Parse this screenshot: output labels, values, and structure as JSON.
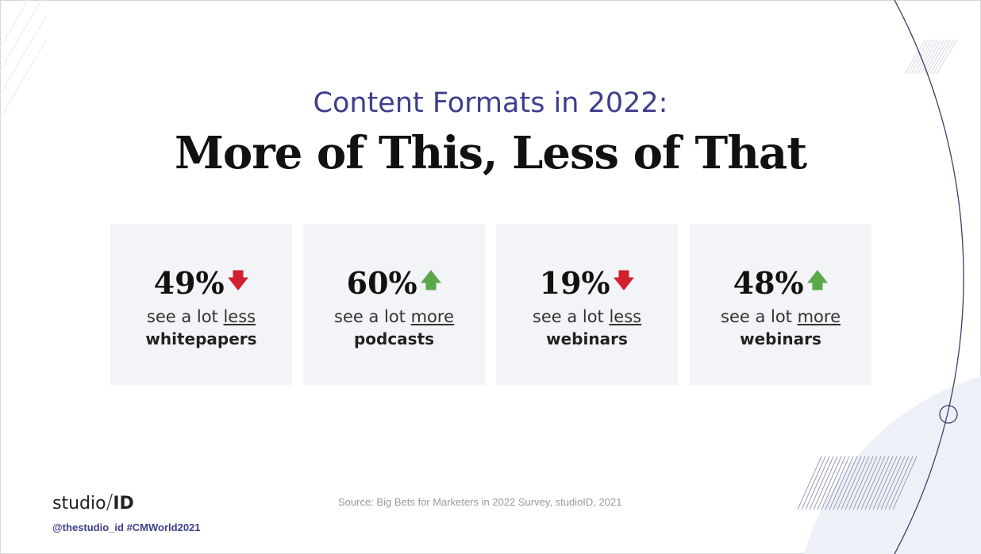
{
  "slide": {
    "subtitle": "Content Formats in 2022:",
    "title": "More of This, Less of That",
    "cards": [
      {
        "percent": "49%",
        "direction": "down",
        "arrow": "🡇",
        "prefix": "see a lot ",
        "qualifier": "less",
        "format": "whitepapers"
      },
      {
        "percent": "60%",
        "direction": "up",
        "arrow": "🡅",
        "prefix": "see a lot ",
        "qualifier": "more",
        "format": "podcasts"
      },
      {
        "percent": "19%",
        "direction": "down",
        "arrow": "🡇",
        "prefix": "see a lot ",
        "qualifier": "less",
        "format": "webinars"
      },
      {
        "percent": "48%",
        "direction": "up",
        "arrow": "🡅",
        "prefix": "see a lot ",
        "qualifier": "more",
        "format": "webinars"
      }
    ],
    "logo": {
      "left": "studio",
      "slash": "/",
      "right": "ID"
    },
    "handles": "@thestudio_id  #CMWorld2021",
    "source": "Source: Big Bets for Marketers in 2022 Survey, studioID, 2021"
  },
  "colors": {
    "accent": "#3d3f8c",
    "down": "#d0202e",
    "up": "#5aa84a",
    "card_bg": "#f3f4f7"
  }
}
